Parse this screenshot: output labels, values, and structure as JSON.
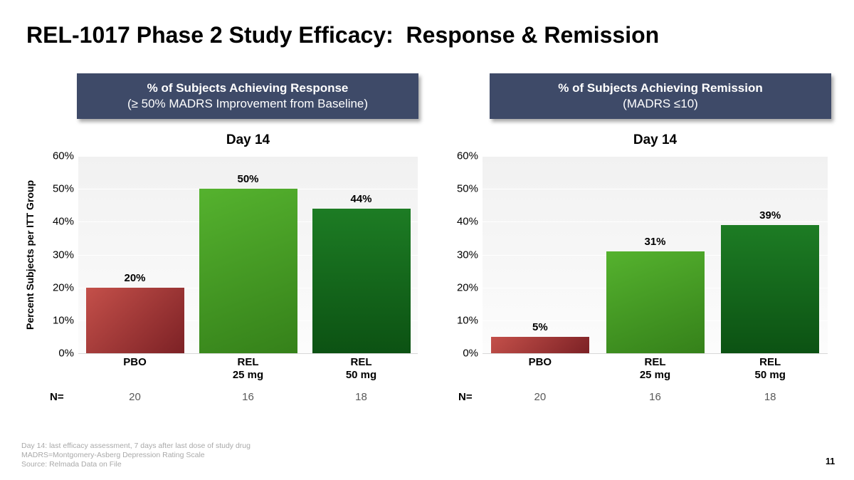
{
  "slide": {
    "title": "REL-1017 Phase 2 Study Efficacy:  Response & Remission",
    "page_number": "11",
    "footnotes": [
      "Day 14: last efficacy assessment, 7 days after last dose of study drug",
      "MADRS=Montgomery-Asberg Depression Rating Scale",
      "Source: Relmada Data on File"
    ]
  },
  "colors": {
    "header_bg": "#3e4a68",
    "header_text": "#ffffff",
    "plot_bg_top": "#f1f1f1",
    "plot_bg_bottom": "#fcfcfc",
    "axis_baseline": "#d8d8d8",
    "footnote_text": "#a9a9a9",
    "n_value_text": "#595959"
  },
  "chart_data": [
    {
      "type": "bar",
      "panel_header": {
        "line1": "% of Subjects Achieving Response",
        "line2": "(≥ 50% MADRS Improvement from Baseline)"
      },
      "title": "Day 14",
      "xlabel": "",
      "ylabel": "Percent Subjects per ITT Group",
      "ylim": [
        0,
        60
      ],
      "ytick_labels": [
        "60%",
        "50%",
        "40%",
        "30%",
        "20%",
        "10%",
        "0%"
      ],
      "grid": "subtle horizontal",
      "legend": "none",
      "categories": [
        [
          "PBO"
        ],
        [
          "REL",
          "25 mg"
        ],
        [
          "REL",
          "50 mg"
        ]
      ],
      "values": [
        20,
        50,
        44
      ],
      "value_labels": [
        "20%",
        "50%",
        "44%"
      ],
      "n_label": "N=",
      "n_values": [
        "20",
        "16",
        "18"
      ],
      "bar_colors": [
        {
          "from": "#c4504a",
          "to": "#7c2125",
          "angle": "135deg"
        },
        {
          "from": "#55b22e",
          "to": "#35811a",
          "angle": "160deg"
        },
        {
          "from": "#1d7c24",
          "to": "#0c5213",
          "angle": "180deg"
        }
      ]
    },
    {
      "type": "bar",
      "panel_header": {
        "line1": "% of Subjects Achieving Remission",
        "line2": "(MADRS ≤10)"
      },
      "title": "Day 14",
      "xlabel": "",
      "ylabel": "",
      "ylim": [
        0,
        60
      ],
      "ytick_labels": [
        "60%",
        "50%",
        "40%",
        "30%",
        "20%",
        "10%",
        "0%"
      ],
      "grid": "subtle horizontal",
      "legend": "none",
      "categories": [
        [
          "PBO"
        ],
        [
          "REL",
          "25 mg"
        ],
        [
          "REL",
          "50 mg"
        ]
      ],
      "values": [
        5,
        31,
        39
      ],
      "value_labels": [
        "5%",
        "31%",
        "39%"
      ],
      "n_label": "N=",
      "n_values": [
        "20",
        "16",
        "18"
      ],
      "bar_colors": [
        {
          "from": "#c4504a",
          "to": "#7c2125",
          "angle": "135deg"
        },
        {
          "from": "#55b22e",
          "to": "#35811a",
          "angle": "160deg"
        },
        {
          "from": "#1d7c24",
          "to": "#0c5213",
          "angle": "180deg"
        }
      ]
    }
  ]
}
